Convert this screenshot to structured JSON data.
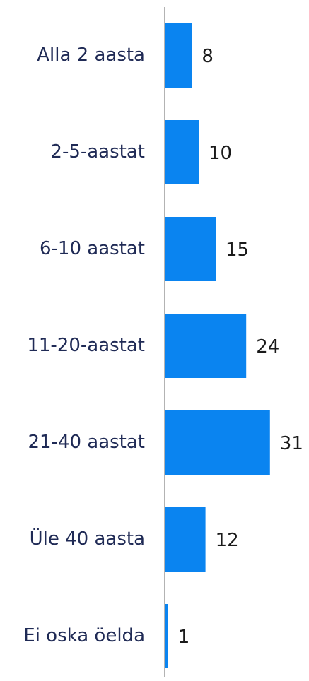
{
  "chart_data": {
    "type": "bar",
    "orientation": "horizontal",
    "categories": [
      "Alla 2 aasta",
      "2-5-aastat",
      "6-10 aastat",
      "11-20-aastat",
      "21-40 aastat",
      "Üle 40 aasta",
      "Ei oska öelda"
    ],
    "values": [
      8,
      10,
      15,
      24,
      31,
      12,
      1
    ],
    "data_labels": [
      "8",
      "10",
      "15",
      "24",
      "31",
      "12",
      "1"
    ],
    "title": "",
    "xlabel": "",
    "ylabel": "",
    "xlim": [
      0,
      31
    ],
    "grid": false,
    "legend": "none",
    "colors": {
      "bar": "#0a84f0",
      "axis": "#9a9a9a",
      "category_text": "#1f2a55",
      "value_text": "#1a1a1a"
    }
  }
}
